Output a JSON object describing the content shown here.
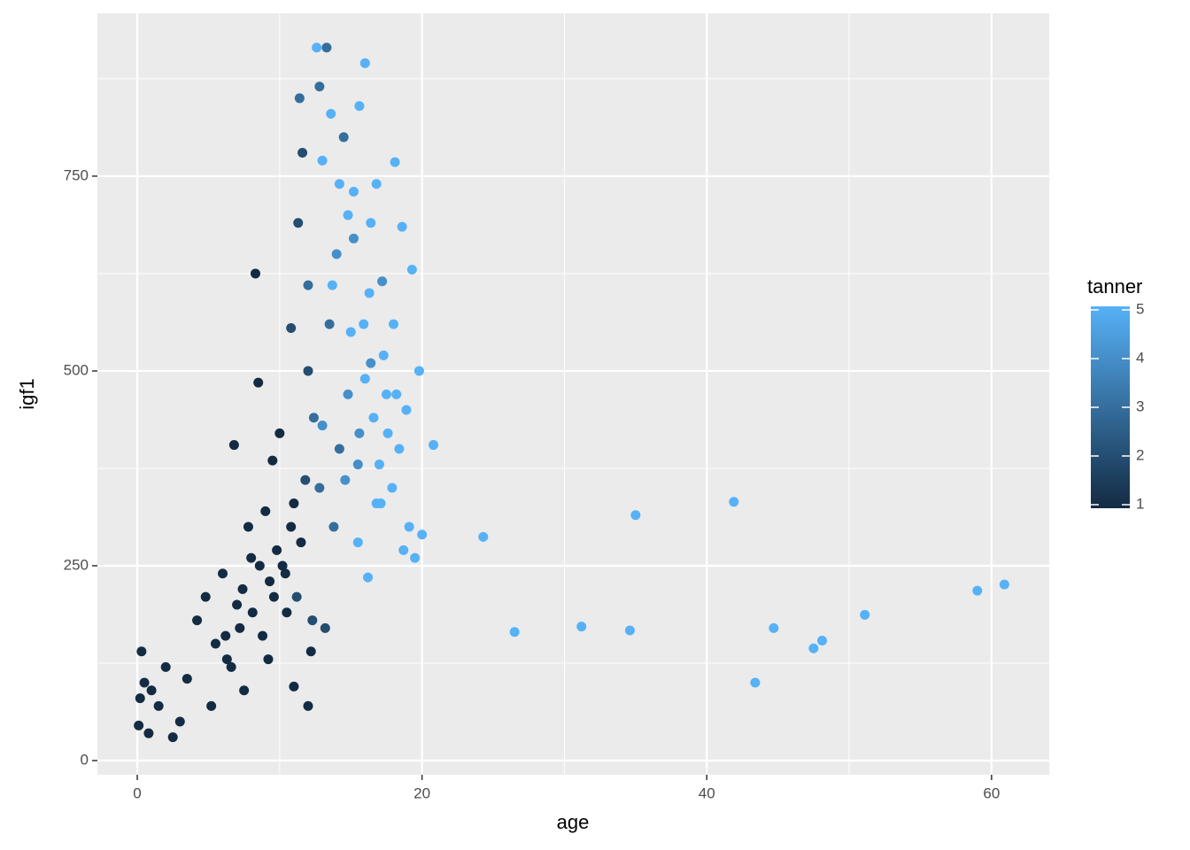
{
  "chart_data": {
    "type": "scatter",
    "x_label": "age",
    "y_label": "igf1",
    "legend_title": "tanner",
    "xlim": [
      -2.8,
      64.05
    ],
    "ylim": [
      -18.2,
      959
    ],
    "xticks": [
      0,
      20,
      40,
      60
    ],
    "yticks": [
      0,
      250,
      500,
      750
    ],
    "x_minor_ticks": [
      10,
      30,
      50
    ],
    "y_minor_ticks": [
      125,
      375,
      625,
      875
    ],
    "grid": true,
    "color_low": "#132B43",
    "color_high": "#56B1F7",
    "color_lim": [
      1,
      5
    ],
    "color_ticks": [
      1,
      2,
      3,
      4,
      5
    ],
    "x": [
      0.1,
      0.2,
      0.3,
      0.5,
      0.8,
      1.0,
      1.5,
      2.0,
      2.5,
      3.0,
      3.5,
      4.2,
      4.8,
      5.2,
      5.5,
      6.0,
      6.3,
      6.8,
      7.0,
      7.5,
      7.2,
      7.8,
      8.0,
      8.3,
      8.5,
      8.8,
      9.0,
      9.3,
      9.5,
      9.8,
      10.0,
      10.2,
      10.5,
      10.8,
      11.0,
      11.2,
      11.5,
      11.8,
      12.0,
      12.3,
      10.8,
      11.3,
      11.6,
      12.0,
      12.4,
      12.8,
      13.2,
      13.5,
      13.8,
      14.2,
      11.4,
      12.0,
      12.8,
      13.0,
      13.3,
      14.0,
      14.5,
      14.8,
      15.2,
      15.5,
      12.6,
      13.0,
      13.6,
      14.2,
      14.8,
      15.2,
      15.6,
      16.0,
      16.4,
      16.8,
      15.0,
      15.5,
      16.0,
      16.3,
      16.6,
      17.0,
      17.3,
      17.6,
      17.9,
      18.2,
      18.4,
      18.6,
      18.9,
      19.1,
      19.3,
      19.5,
      19.8,
      20.0,
      16.2,
      17.1,
      15.6,
      16.4,
      17.2,
      14.6,
      15.9,
      17.5,
      18.0,
      13.7,
      16.8,
      18.7,
      20.8,
      24.3,
      26.5,
      31.2,
      34.6,
      35.0,
      41.9,
      43.4,
      44.7,
      47.5,
      48.1,
      51.1,
      59.0,
      60.9,
      18.1,
      6.2,
      6.6,
      7.4,
      8.1,
      8.6,
      9.2,
      9.6,
      10.4,
      11.0,
      12.2
    ],
    "values": [
      45,
      80,
      140,
      100,
      35,
      90,
      70,
      120,
      30,
      50,
      105,
      180,
      210,
      70,
      150,
      240,
      130,
      405,
      200,
      90,
      170,
      300,
      260,
      625,
      485,
      160,
      320,
      230,
      385,
      270,
      420,
      250,
      190,
      300,
      95,
      210,
      280,
      360,
      70,
      180,
      555,
      690,
      780,
      500,
      440,
      350,
      170,
      560,
      300,
      400,
      850,
      610,
      865,
      430,
      915,
      650,
      800,
      470,
      670,
      380,
      915,
      770,
      830,
      740,
      700,
      730,
      840,
      895,
      690,
      740,
      550,
      280,
      490,
      600,
      440,
      380,
      520,
      420,
      350,
      470,
      400,
      685,
      450,
      300,
      630,
      260,
      500,
      290,
      235,
      330,
      420,
      510,
      615,
      360,
      560,
      470,
      560,
      610,
      330,
      270,
      405,
      287,
      165,
      172,
      167,
      315,
      332,
      100,
      170,
      144,
      154,
      187,
      218,
      226,
      768,
      160,
      120,
      220,
      190,
      250,
      130,
      210,
      240,
      330,
      140
    ],
    "tanner": [
      1,
      1,
      1,
      1,
      1,
      1,
      1,
      1,
      1,
      1,
      1,
      1,
      1,
      1,
      1,
      1,
      1,
      1,
      1,
      1,
      1,
      1,
      1,
      1,
      1,
      1,
      1,
      1,
      1,
      1,
      1,
      1,
      1,
      1,
      1,
      2,
      1,
      2,
      1,
      2,
      2,
      2,
      2,
      2,
      3,
      3,
      2,
      3,
      3,
      3,
      3,
      3,
      3,
      4,
      3,
      4,
      3,
      4,
      4,
      4,
      5,
      5,
      5,
      5,
      5,
      5,
      5,
      5,
      5,
      5,
      5,
      5,
      5,
      5,
      5,
      5,
      5,
      5,
      5,
      5,
      5,
      5,
      5,
      5,
      5,
      5,
      5,
      5,
      5,
      5,
      4,
      4,
      4,
      4,
      5,
      5,
      5,
      5,
      5,
      5,
      5,
      5,
      5,
      5,
      5,
      5,
      5,
      5,
      5,
      5,
      5,
      5,
      5,
      5,
      5,
      1,
      1,
      1,
      1,
      1,
      1,
      1,
      1,
      1,
      1
    ]
  }
}
